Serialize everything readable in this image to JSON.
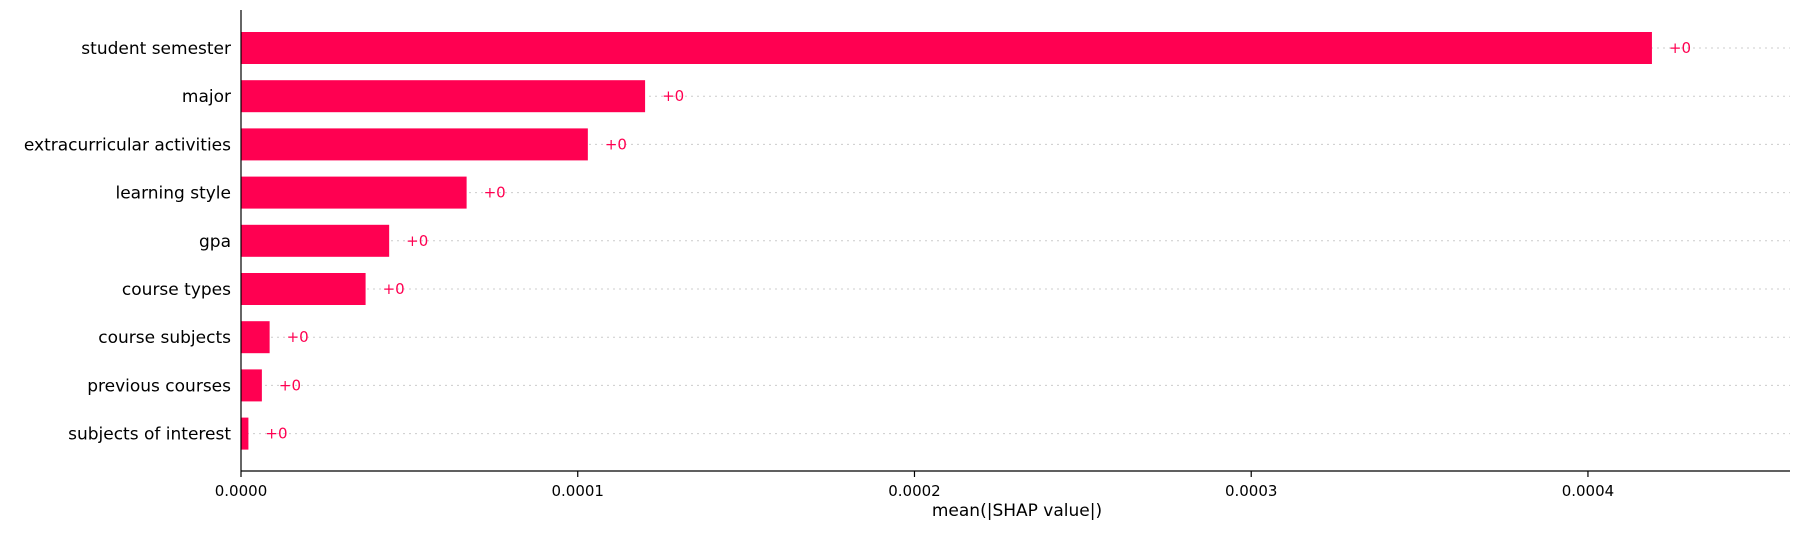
{
  "chart_data": {
    "type": "bar",
    "orientation": "horizontal",
    "categories": [
      "student semester",
      "major",
      "extracurricular activities",
      "learning style",
      "gpa",
      "course types",
      "course subjects",
      "previous courses",
      "subjects of interest"
    ],
    "values": [
      0.000419,
      0.00012,
      0.000103,
      6.7e-05,
      4.4e-05,
      3.7e-05,
      8.5e-06,
      6.2e-06,
      2.2e-06
    ],
    "data_labels": [
      "+0",
      "+0",
      "+0",
      "+0",
      "+0",
      "+0",
      "+0",
      "+0",
      "+0"
    ],
    "xlabel": "mean(|SHAP value|)",
    "ylabel": "",
    "title": "",
    "xlim": [
      0,
      0.00046
    ],
    "xticks": [
      0,
      0.0001,
      0.0002,
      0.0003,
      0.0004
    ],
    "xtick_labels": [
      "0.0000",
      "0.0001",
      "0.0002",
      "0.0003",
      "0.0004"
    ],
    "grid": "horizontal dotted guide lines per category",
    "legend": "none",
    "colors": {
      "bar": "#ff0051",
      "data_label": "#ff0051",
      "axis": "#000000",
      "guide": "#cccccc"
    }
  }
}
